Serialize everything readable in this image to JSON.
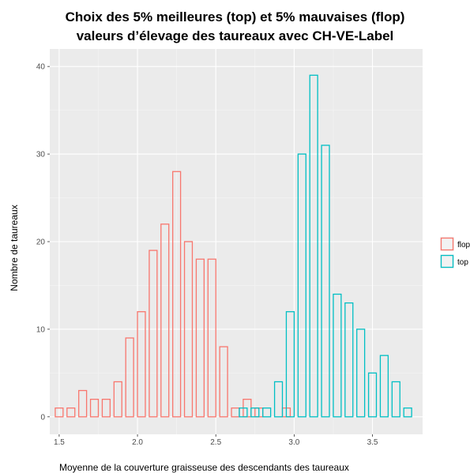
{
  "chart_data": {
    "type": "bar",
    "title_lines": [
      "Choix des 5% meilleures (top) et 5% mauvaises (flop)",
      "valeurs d’élevage des taureaux avec CH-VE-Label"
    ],
    "xlabel": "Moyenne de la couverture graisseuse des descendants des taureaux",
    "ylabel": "Nombre de taureaux",
    "xlim": [
      1.44,
      3.82
    ],
    "ylim": [
      -2,
      42
    ],
    "x_ticks": [
      1.5,
      2.0,
      2.5,
      3.0,
      3.5
    ],
    "x_tick_labels": [
      "1.5",
      "2.0",
      "2.5",
      "3.0",
      "3.5"
    ],
    "y_ticks": [
      0,
      10,
      20,
      30,
      40
    ],
    "y_tick_labels": [
      "0",
      "10",
      "20",
      "30",
      "40"
    ],
    "bin_width": 0.05,
    "grid": true,
    "legend_position": "right",
    "series": [
      {
        "name": "flop",
        "color": "#F8766D",
        "x": [
          1.5,
          1.575,
          1.65,
          1.725,
          1.8,
          1.875,
          1.95,
          2.025,
          2.1,
          2.175,
          2.25,
          2.325,
          2.4,
          2.475,
          2.55,
          2.625,
          2.7,
          2.775,
          2.95
        ],
        "values": [
          1,
          1,
          3,
          2,
          2,
          4,
          9,
          12,
          19,
          22,
          28,
          20,
          18,
          18,
          8,
          1,
          2,
          1,
          1
        ]
      },
      {
        "name": "top",
        "color": "#00BFC4",
        "x": [
          2.675,
          2.75,
          2.825,
          2.9,
          2.975,
          3.05,
          3.125,
          3.2,
          3.275,
          3.35,
          3.425,
          3.5,
          3.575,
          3.65,
          3.725
        ],
        "values": [
          1,
          1,
          1,
          4,
          12,
          30,
          39,
          31,
          14,
          13,
          10,
          5,
          7,
          4,
          1
        ]
      }
    ]
  }
}
